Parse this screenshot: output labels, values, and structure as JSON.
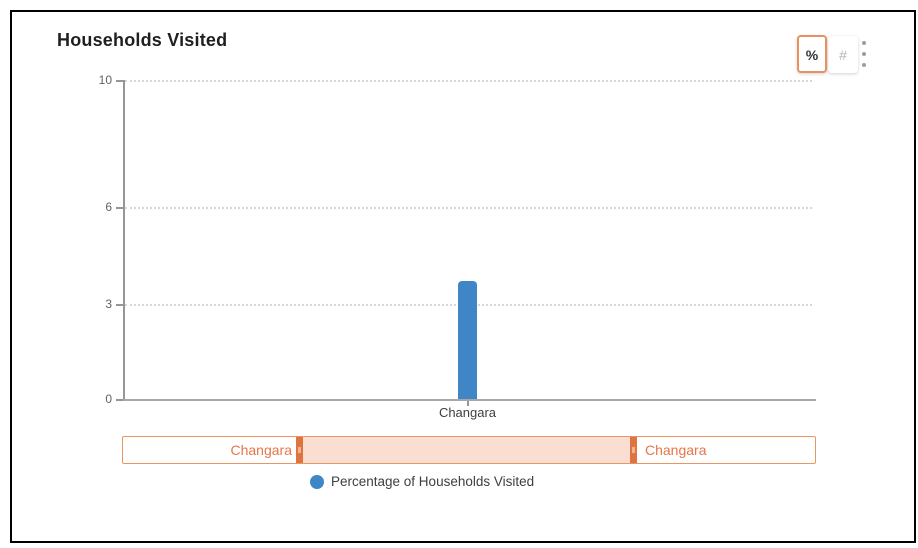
{
  "header": {
    "title": "Households Visited"
  },
  "toolbar": {
    "percent_button": "%",
    "hash_button": "#",
    "menu_icon": "kebab-vertical-dots",
    "active_button": "percent",
    "active_border_color": "#e8935f"
  },
  "chart_data": {
    "type": "bar",
    "title": "Households Visited",
    "categories": [
      "Changara"
    ],
    "series": [
      {
        "name": "Percentage of Households Visited",
        "values": [
          3.7
        ]
      }
    ],
    "xlabel": "",
    "ylabel": "",
    "ylim": [
      0,
      10
    ],
    "yticks": [
      0,
      3,
      6,
      10
    ],
    "grid": "horizontal-dotted",
    "legend_position": "bottom",
    "bar_color": "#3e86c6"
  },
  "axes": {
    "y_tick_labels": {
      "v10": "10",
      "v6": "6",
      "v3": "3",
      "v0": "0"
    },
    "x_tick_labels": {
      "c0": "Changara"
    }
  },
  "navigator": {
    "left_label": "Changara",
    "right_label": "Changara",
    "border_color": "#ea9663",
    "handle_color": "#de7441",
    "range_fill_color": "#f9ded1",
    "label_color": "#e4764b"
  },
  "legend": {
    "items": [
      {
        "label": "Percentage of Households Visited",
        "color": "#3e86c6"
      }
    ]
  }
}
